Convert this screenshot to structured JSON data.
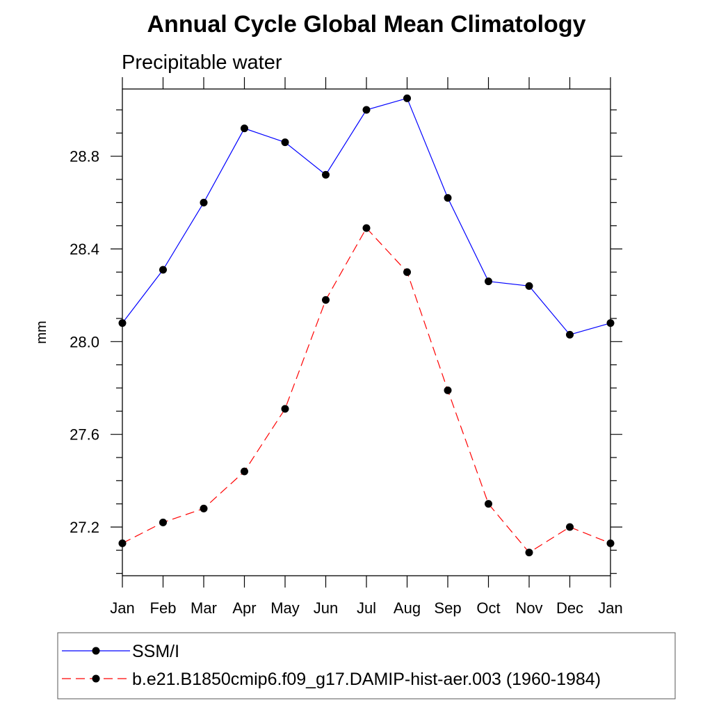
{
  "chart_data": {
    "type": "line",
    "title": "Annual Cycle Global Mean Climatology",
    "subtitle": "Precipitable water",
    "xlabel": "",
    "ylabel": "mm",
    "categories": [
      "Jan",
      "Feb",
      "Mar",
      "Apr",
      "May",
      "Jun",
      "Jul",
      "Aug",
      "Sep",
      "Oct",
      "Nov",
      "Dec",
      "Jan"
    ],
    "ylim": [
      26.99,
      29.09
    ],
    "yticks": [
      27.2,
      27.6,
      28.0,
      28.4,
      28.8
    ],
    "ytick_labels": [
      "27.2",
      "27.6",
      "28.0",
      "28.4",
      "28.8"
    ],
    "grid": false,
    "legend_position": "bottom",
    "series": [
      {
        "name": "SSM/I",
        "color": "#0000ff",
        "dash": "solid",
        "marker": "filled-circle",
        "values": [
          28.08,
          28.31,
          28.6,
          28.92,
          28.86,
          28.72,
          29.0,
          29.05,
          28.62,
          28.26,
          28.24,
          28.03,
          28.08
        ]
      },
      {
        "name": "b.e21.B1850cmip6.f09_g17.DAMIP-hist-aer.003 (1960-1984)",
        "color": "#ff0000",
        "dash": "dashed",
        "marker": "filled-circle",
        "values": [
          27.13,
          27.22,
          27.28,
          27.44,
          27.71,
          28.18,
          28.49,
          28.3,
          27.79,
          27.3,
          27.09,
          27.2,
          27.13
        ]
      }
    ]
  }
}
